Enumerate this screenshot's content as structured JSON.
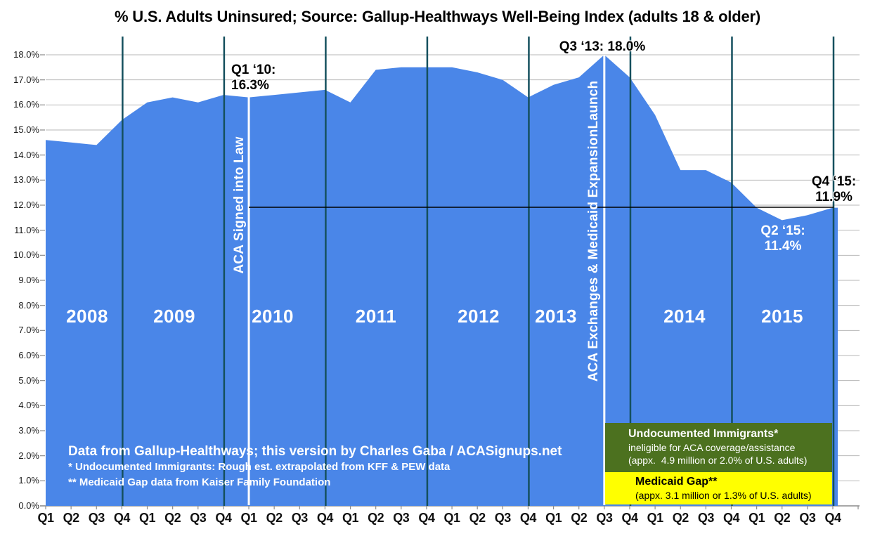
{
  "title": "% U.S. Adults Uninsured; Source: Gallup-Healthways Well-Being Index (adults 18 & older)",
  "colors": {
    "area": "#4a86e8",
    "year_divider": "#15505e",
    "event_line": "#ffffff",
    "gridline": "#b7b7b7",
    "axis": "#8c8c8c",
    "reference_line": "#000000",
    "title_text": "#000000",
    "year_label_text": "#ffffff",
    "footer_text": "#ffffff"
  },
  "chart_data": {
    "type": "area",
    "title": "% U.S. Adults Uninsured",
    "source": "Gallup-Healthways Well-Being Index (adults 18 & older)",
    "grid": "horizontal",
    "legend": "none",
    "ylim": [
      0,
      18
    ],
    "ytick_labels": [
      "0.0%",
      "1.0%",
      "2.0%",
      "3.0%",
      "4.0%",
      "5.0%",
      "6.0%",
      "7.0%",
      "8.0%",
      "9.0%",
      "10.0%",
      "11.0%",
      "12.0%",
      "13.0%",
      "14.0%",
      "15.0%",
      "16.0%",
      "17.0%",
      "18.0%"
    ],
    "quarter_labels": [
      "Q1",
      "Q2",
      "Q3",
      "Q4"
    ],
    "years": [
      "2008",
      "2009",
      "2010",
      "2011",
      "2012",
      "2013",
      "2014",
      "2015"
    ],
    "categories": [
      "Q1 2008",
      "Q2 2008",
      "Q3 2008",
      "Q4 2008",
      "Q1 2009",
      "Q2 2009",
      "Q3 2009",
      "Q4 2009",
      "Q1 2010",
      "Q2 2010",
      "Q3 2010",
      "Q4 2010",
      "Q1 2011",
      "Q2 2011",
      "Q3 2011",
      "Q4 2011",
      "Q1 2012",
      "Q2 2012",
      "Q3 2012",
      "Q4 2012",
      "Q1 2013",
      "Q2 2013",
      "Q3 2013",
      "Q4 2013",
      "Q1 2014",
      "Q2 2014",
      "Q3 2014",
      "Q4 2014",
      "Q1 2015",
      "Q2 2015",
      "Q3 2015",
      "Q4 2015"
    ],
    "values": [
      14.6,
      14.5,
      14.4,
      15.4,
      16.1,
      16.3,
      16.1,
      16.4,
      16.3,
      16.4,
      16.5,
      16.6,
      16.1,
      17.4,
      17.5,
      17.5,
      17.5,
      17.3,
      17.0,
      16.3,
      16.8,
      17.1,
      18.0,
      17.1,
      15.6,
      13.4,
      13.4,
      12.9,
      11.9,
      11.4,
      11.6,
      11.9
    ],
    "event_lines": [
      {
        "id": "aca-signed",
        "label": "ACA Signed into Law",
        "at": "Q1 2010"
      },
      {
        "id": "aca-exchanges",
        "label": "ACA Exchanges & Medicaid ExpansionLaunch",
        "at": "Q3 2013"
      }
    ],
    "reference_line": {
      "level_pct": 11.9,
      "from": "Q1 2010",
      "to": "Q4 2015"
    },
    "annotations": [
      {
        "id": "q1-10",
        "anchor": "Q1 2010",
        "lines": [
          "Q1 ‘10:",
          "16.3%"
        ],
        "color": "black"
      },
      {
        "id": "q3-13",
        "anchor": "Q3 2013",
        "lines": [
          "Q3 ‘13: 18.0%"
        ],
        "color": "black"
      },
      {
        "id": "q2-15",
        "anchor": "Q2 2015",
        "lines": [
          "Q2 ‘15:",
          "11.4%"
        ],
        "color": "white"
      },
      {
        "id": "q4-15",
        "anchor": "Q4 2015",
        "lines": [
          "Q4 ‘15:",
          "11.9%"
        ],
        "color": "black"
      }
    ]
  },
  "footer": {
    "credit": "Data from Gallup-Healthways; this version by Charles Gaba / ACASignups.net",
    "note1": "* Undocumented Immigrants: Rough est. extrapolated from KFF & PEW data",
    "note2": "** Medicaid Gap data from Kaiser Family Foundation"
  },
  "overlay_boxes": {
    "undocumented": {
      "title": "Undocumented Immigrants*",
      "line1": "ineligible for ACA coverage/assistance",
      "line2": "(appx.  4.9 million or 2.0% of U.S. adults)",
      "bg": "#4c711f",
      "text_color": "#ffffff"
    },
    "medicaid_gap": {
      "title": "Medicaid Gap**",
      "line1": "(appx. 3.1 million or 1.3% of U.S. adults)",
      "bg": "#ffff00",
      "text_color": "#000000"
    }
  }
}
